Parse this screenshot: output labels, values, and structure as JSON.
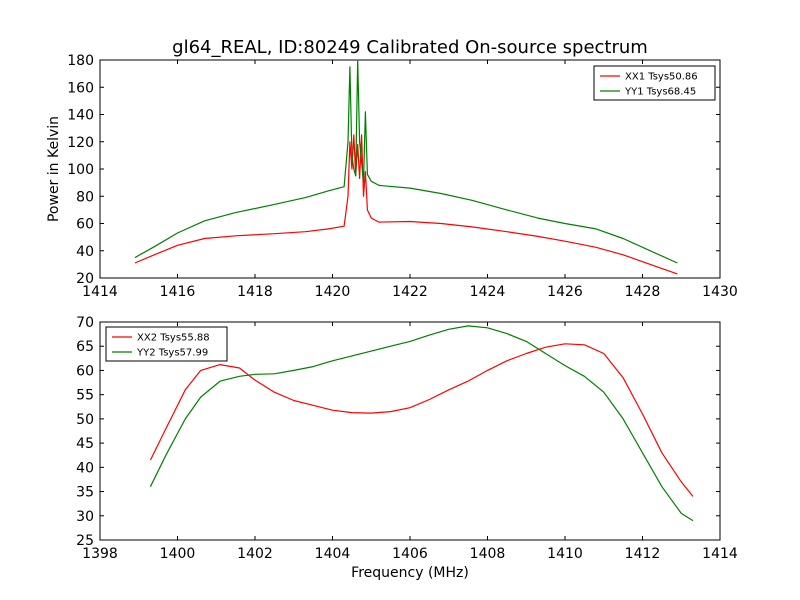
{
  "title": "gl64_REAL, ID:80249 Calibrated On-source spectrum",
  "chart_data": [
    {
      "type": "line",
      "xlabel": "",
      "ylabel": "Power in Kelvin",
      "xlim": [
        1414,
        1430
      ],
      "ylim": [
        20,
        180
      ],
      "xticks": [
        "1414",
        "1416",
        "1418",
        "1420",
        "1422",
        "1424",
        "1426",
        "1428",
        "1430"
      ],
      "yticks": [
        "20",
        "40",
        "60",
        "80",
        "100",
        "120",
        "140",
        "160",
        "180"
      ],
      "grid": false,
      "legend_position": "top-right",
      "series": [
        {
          "name": "XX1 Tsys50.86",
          "color": "#ff0000",
          "x": [
            1414.9,
            1415.4,
            1416.0,
            1416.7,
            1417.5,
            1418.5,
            1419.3,
            1419.9,
            1420.3,
            1420.4,
            1420.45,
            1420.5,
            1420.55,
            1420.6,
            1420.65,
            1420.7,
            1420.75,
            1420.8,
            1420.85,
            1420.9,
            1421.0,
            1421.2,
            1422.0,
            1422.8,
            1423.6,
            1424.5,
            1425.3,
            1426.0,
            1426.8,
            1427.5,
            1428.2,
            1428.9
          ],
          "values": [
            31,
            37,
            44,
            49,
            51,
            52.5,
            54,
            56,
            58,
            80,
            120,
            100,
            125,
            95,
            118,
            93,
            125,
            80,
            98,
            70,
            64,
            61,
            61.5,
            60,
            57.5,
            54,
            50.5,
            47,
            42.5,
            37,
            30,
            23
          ]
        },
        {
          "name": "YY1 Tsys68.45",
          "color": "#008000",
          "x": [
            1414.9,
            1415.4,
            1416.0,
            1416.7,
            1417.5,
            1418.5,
            1419.3,
            1419.9,
            1420.3,
            1420.4,
            1420.45,
            1420.5,
            1420.55,
            1420.6,
            1420.65,
            1420.7,
            1420.75,
            1420.8,
            1420.85,
            1420.9,
            1421.0,
            1421.2,
            1422.0,
            1422.8,
            1423.6,
            1424.5,
            1425.3,
            1426.0,
            1426.8,
            1427.5,
            1428.2,
            1428.9
          ],
          "values": [
            35,
            43,
            53,
            62,
            68,
            74,
            79,
            84,
            87,
            120,
            175,
            110,
            100,
            95,
            180,
            120,
            105,
            90,
            142,
            96,
            91,
            88,
            86,
            82,
            77,
            70,
            64,
            60,
            56,
            49,
            40,
            31
          ]
        }
      ]
    },
    {
      "type": "line",
      "xlabel": "Frequency (MHz)",
      "ylabel": "",
      "xlim": [
        1398,
        1414
      ],
      "ylim": [
        25,
        70
      ],
      "xticks": [
        "1398",
        "1400",
        "1402",
        "1404",
        "1406",
        "1408",
        "1410",
        "1412",
        "1414"
      ],
      "yticks": [
        "25",
        "30",
        "35",
        "40",
        "45",
        "50",
        "55",
        "60",
        "65",
        "70"
      ],
      "grid": false,
      "legend_position": "top-left",
      "series": [
        {
          "name": "XX2 Tsys55.88",
          "color": "#ff0000",
          "x": [
            1399.3,
            1399.7,
            1400.2,
            1400.6,
            1401.1,
            1401.6,
            1402.0,
            1402.5,
            1403.0,
            1403.5,
            1404.0,
            1404.5,
            1405.0,
            1405.5,
            1406.0,
            1406.5,
            1407.0,
            1407.5,
            1408.0,
            1408.5,
            1409.0,
            1409.5,
            1410.0,
            1410.5,
            1411.0,
            1411.5,
            1412.0,
            1412.5,
            1413.0,
            1413.3
          ],
          "values": [
            41.5,
            48,
            56,
            60,
            61.2,
            60.5,
            58,
            55.5,
            53.8,
            52.8,
            51.8,
            51.3,
            51.2,
            51.5,
            52.3,
            54,
            56,
            57.8,
            60,
            62,
            63.5,
            64.8,
            65.5,
            65.3,
            63.5,
            58.5,
            51,
            43,
            37,
            34
          ]
        },
        {
          "name": "YY2 Tsys57.99",
          "color": "#008000",
          "x": [
            1399.3,
            1399.7,
            1400.2,
            1400.6,
            1401.1,
            1401.6,
            1402.0,
            1402.5,
            1403.0,
            1403.5,
            1404.0,
            1404.5,
            1405.0,
            1405.5,
            1406.0,
            1406.5,
            1407.0,
            1407.5,
            1408.0,
            1408.5,
            1409.0,
            1409.5,
            1410.0,
            1410.5,
            1411.0,
            1411.5,
            1412.0,
            1412.5,
            1413.0,
            1413.3
          ],
          "values": [
            36,
            42.5,
            50,
            54.5,
            57.8,
            58.8,
            59.2,
            59.3,
            60,
            60.8,
            62,
            63,
            64,
            65,
            66,
            67.3,
            68.5,
            69.2,
            68.8,
            67.6,
            66,
            63.5,
            61,
            58.8,
            55.5,
            50,
            43,
            36,
            30.5,
            29
          ]
        }
      ]
    }
  ]
}
